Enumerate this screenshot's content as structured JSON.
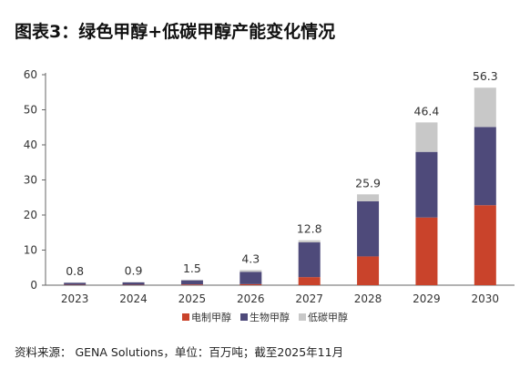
{
  "title": "图表3：绿色甲醇+低碳甲醇产能变化情况",
  "source": "资料来源： GENA Solutions，单位：百万吨；截至2025年11月",
  "chart_data": {
    "type": "bar",
    "stacked": true,
    "categories": [
      "2023",
      "2024",
      "2025",
      "2026",
      "2027",
      "2028",
      "2029",
      "2030"
    ],
    "series": [
      {
        "name": "电制甲醇",
        "color": "#C9432B",
        "values": [
          0.1,
          0.1,
          0.2,
          0.3,
          2.3,
          8.2,
          19.3,
          22.8
        ]
      },
      {
        "name": "生物甲醇",
        "color": "#4E4A7A",
        "values": [
          0.6,
          0.7,
          1.2,
          3.5,
          9.9,
          15.7,
          18.7,
          22.3
        ]
      },
      {
        "name": "低碳甲醇",
        "color": "#C8C8C8",
        "values": [
          0.1,
          0.1,
          0.1,
          0.5,
          0.6,
          2.0,
          8.4,
          11.2
        ]
      }
    ],
    "totals": [
      "0.8",
      "0.9",
      "1.5",
      "4.3",
      "12.8",
      "25.9",
      "46.4",
      "56.3"
    ],
    "ylim": [
      0,
      60
    ],
    "yticks": [
      "0",
      "10",
      "20",
      "30",
      "40",
      "50",
      "60"
    ],
    "grid": false,
    "legend": "bottom"
  }
}
